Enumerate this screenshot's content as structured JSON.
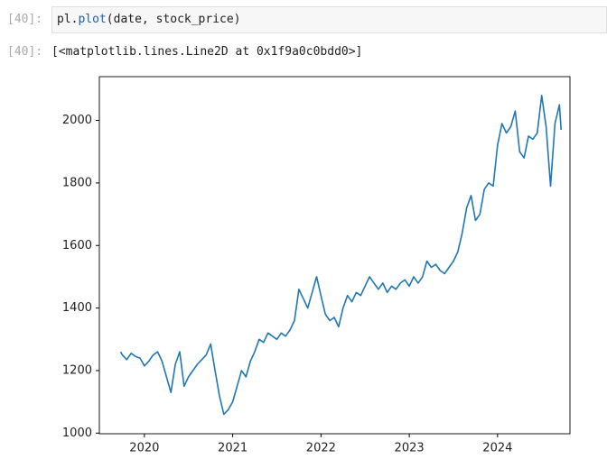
{
  "input_cell": {
    "prompt": "[40]:",
    "code_parts": [
      "pl.",
      "plot",
      "(date, stock_price)"
    ]
  },
  "output_cell": {
    "prompt": "[40]:",
    "text": "[<matplotlib.lines.Line2D at 0x1f9a0c0bdd0>]"
  },
  "chart_data": {
    "type": "line",
    "color": "#1f77b4",
    "x": [
      2019.73,
      2019.75,
      2019.8,
      2019.85,
      2019.9,
      2019.95,
      2020.0,
      2020.05,
      2020.1,
      2020.15,
      2020.2,
      2020.25,
      2020.3,
      2020.35,
      2020.4,
      2020.45,
      2020.5,
      2020.55,
      2020.6,
      2020.7,
      2020.75,
      2020.8,
      2020.85,
      2020.9,
      2020.95,
      2021.0,
      2021.05,
      2021.1,
      2021.15,
      2021.2,
      2021.25,
      2021.3,
      2021.35,
      2021.4,
      2021.45,
      2021.5,
      2021.55,
      2021.6,
      2021.65,
      2021.7,
      2021.75,
      2021.8,
      2021.85,
      2021.9,
      2021.95,
      2022.0,
      2022.05,
      2022.1,
      2022.15,
      2022.2,
      2022.25,
      2022.3,
      2022.35,
      2022.4,
      2022.45,
      2022.5,
      2022.55,
      2022.6,
      2022.65,
      2022.7,
      2022.75,
      2022.8,
      2022.85,
      2022.9,
      2022.95,
      2023.0,
      2023.05,
      2023.1,
      2023.15,
      2023.2,
      2023.25,
      2023.3,
      2023.35,
      2023.4,
      2023.45,
      2023.5,
      2023.55,
      2023.6,
      2023.65,
      2023.7,
      2023.75,
      2023.8,
      2023.85,
      2023.9,
      2023.95,
      2024.0,
      2024.05,
      2024.1,
      2024.15,
      2024.2,
      2024.25,
      2024.3,
      2024.35,
      2024.4,
      2024.45,
      2024.5,
      2024.55,
      2024.6,
      2024.65,
      2024.7,
      2024.72
    ],
    "values": [
      1260,
      1250,
      1235,
      1255,
      1245,
      1240,
      1215,
      1230,
      1250,
      1260,
      1230,
      1180,
      1130,
      1220,
      1260,
      1150,
      1180,
      1200,
      1220,
      1250,
      1285,
      1200,
      1120,
      1060,
      1075,
      1100,
      1150,
      1200,
      1180,
      1230,
      1260,
      1300,
      1290,
      1320,
      1310,
      1300,
      1320,
      1310,
      1330,
      1360,
      1460,
      1430,
      1400,
      1450,
      1500,
      1440,
      1380,
      1360,
      1370,
      1340,
      1400,
      1440,
      1420,
      1450,
      1440,
      1470,
      1500,
      1480,
      1460,
      1480,
      1450,
      1470,
      1460,
      1480,
      1490,
      1470,
      1500,
      1480,
      1500,
      1550,
      1530,
      1540,
      1520,
      1510,
      1530,
      1550,
      1580,
      1640,
      1720,
      1760,
      1680,
      1700,
      1780,
      1800,
      1790,
      1920,
      1990,
      1960,
      1980,
      2030,
      1900,
      1880,
      1950,
      1940,
      1960,
      2080,
      1980,
      1790,
      1990,
      2050,
      1970
    ],
    "xlim": [
      2019.49,
      2024.82
    ],
    "ylim": [
      998,
      2140
    ],
    "xticks": [
      2020,
      2021,
      2022,
      2023,
      2024
    ],
    "yticks": [
      1000,
      1200,
      1400,
      1600,
      1800,
      2000
    ]
  }
}
